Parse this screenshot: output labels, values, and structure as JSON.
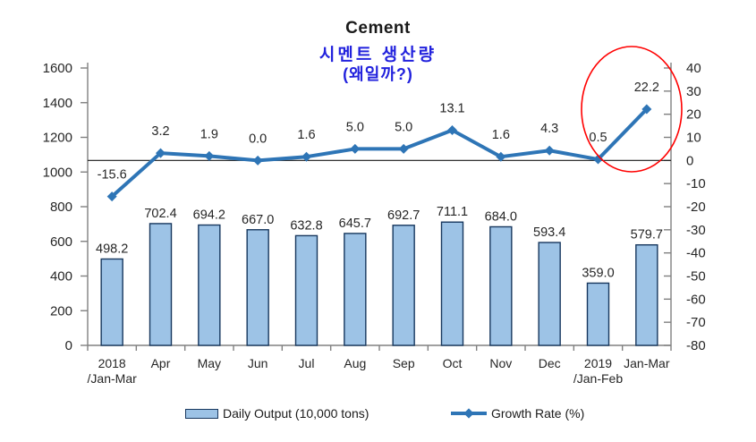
{
  "title": "Cement",
  "subtitle_line1": "시멘트 생산량",
  "subtitle_line2": "(왜일까?)",
  "legend": {
    "bar_label": "Daily Output (10,000 tons)",
    "line_label": "Growth Rate (%)"
  },
  "colors": {
    "bar_fill": "#9DC3E6",
    "bar_border": "#17375E",
    "line": "#2E75B6",
    "subtitle_text": "#2222DD",
    "annotation_ellipse": "#FF0000",
    "axis_line": "#808080",
    "zero_line": "#1a1a1a",
    "text": "#262626"
  },
  "chart_data": {
    "type": "bar",
    "title": "Cement",
    "categories": [
      [
        "2018",
        "/Jan-Mar"
      ],
      [
        "Apr"
      ],
      [
        "May"
      ],
      [
        "Jun"
      ],
      [
        "Jul"
      ],
      [
        "Aug"
      ],
      [
        "Sep"
      ],
      [
        "Oct"
      ],
      [
        "Nov"
      ],
      [
        "Dec"
      ],
      [
        "2019",
        "/Jan-Feb"
      ],
      [
        "Jan-Mar"
      ]
    ],
    "series": [
      {
        "name": "Daily Output (10,000 tons)",
        "type": "bar",
        "axis": "left",
        "values": [
          498.2,
          702.4,
          694.2,
          667.0,
          632.8,
          645.7,
          692.7,
          711.1,
          684.0,
          593.4,
          359.0,
          579.7
        ]
      },
      {
        "name": "Growth Rate (%)",
        "type": "line",
        "axis": "right",
        "values": [
          -15.6,
          3.2,
          1.9,
          0.0,
          1.6,
          5.0,
          5.0,
          13.1,
          1.6,
          4.3,
          0.5,
          22.2
        ]
      }
    ],
    "left_axis": {
      "min": 0,
      "max": 1600,
      "step": 200,
      "ticks": [
        "0",
        "200",
        "400",
        "600",
        "800",
        "1000",
        "1200",
        "1400",
        "1600"
      ]
    },
    "right_axis": {
      "min": -80,
      "max": 40,
      "step": 10,
      "ticks": [
        "-80",
        "-70",
        "-60",
        "-50",
        "-40",
        "-30",
        "-20",
        "-10",
        "0",
        "10",
        "20",
        "30",
        "40"
      ]
    },
    "grid": false,
    "legend_position": "bottom",
    "annotation": "red ellipse highlighting last growth-rate point (22.2)"
  }
}
